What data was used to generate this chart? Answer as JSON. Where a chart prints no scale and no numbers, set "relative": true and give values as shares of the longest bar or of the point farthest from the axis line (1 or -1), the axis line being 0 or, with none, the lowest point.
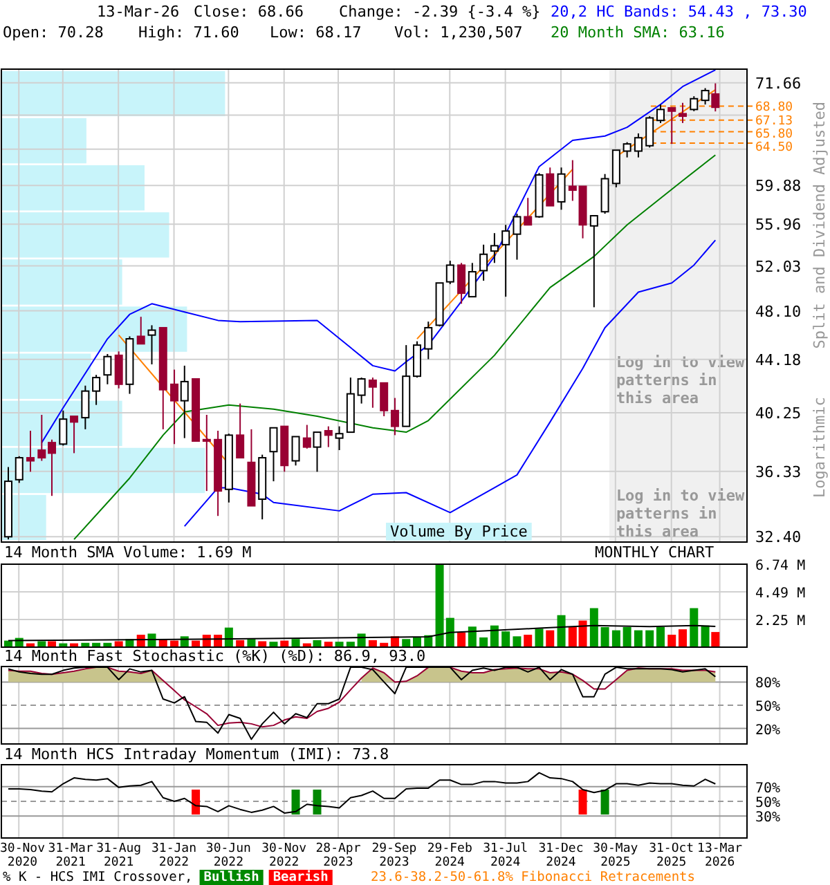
{
  "chart_data": [
    {
      "type": "candlestick",
      "title": "13-Mar-26",
      "ylabel": "Split and Dividend Adjusted",
      "log": true,
      "grid": true,
      "legend": "top right",
      "tick_labels": "y",
      "annotations": [
        "Close: 68.66",
        "Change: -2.39 {-3.4 %}",
        "Open: 70.28",
        "High: 71.60",
        "Low: 68.17",
        "Vol: 1,230,507",
        "Log in to view patterns in this area",
        "Logarithmic",
        "23.6-38.2-50-61.8% Fibonacci Retracements",
        "Volume By Price"
      ],
      "xlim": [
        "2020-10-13",
        "2026-05-27"
      ],
      "ylim": [
        32.1,
        73.4
      ],
      "xticks": [
        {
          "value": "2020-11-30",
          "label": null
        },
        {
          "value": "2021-03-31",
          "label": null
        },
        {
          "value": "2021-08-31",
          "label": null
        },
        {
          "value": "2022-01-31",
          "label": null
        },
        {
          "value": "2022-06-30",
          "label": null
        },
        {
          "value": "2022-11-30",
          "label": null
        },
        {
          "value": "2023-04-28",
          "label": null
        },
        {
          "value": "2023-09-29",
          "label": null
        },
        {
          "value": "2024-02-29",
          "label": null
        },
        {
          "value": "2024-07-31",
          "label": null
        },
        {
          "value": "2024-12-31",
          "label": null
        },
        {
          "value": "2025-05-30",
          "label": null
        },
        {
          "value": "2025-10-31",
          "label": null
        },
        {
          "value": "2026-03-13",
          "label": null
        }
      ],
      "yticks": [
        {
          "value": 32.4,
          "label": "32.40"
        },
        {
          "value": 36.33,
          "label": "36.33"
        },
        {
          "value": 40.25,
          "label": "40.25"
        },
        {
          "value": 44.18,
          "label": "44.18"
        },
        {
          "value": 48.1,
          "label": "48.10"
        },
        {
          "value": 52.03,
          "label": "52.03"
        },
        {
          "value": 55.96,
          "label": "55.96"
        },
        {
          "value": 59.88,
          "label": "59.88"
        },
        {
          "value": 63.81,
          "label": null
        },
        {
          "value": 67.73,
          "label": null
        },
        {
          "value": 71.66,
          "label": "71.66"
        }
      ],
      "x": [
        "2020-11",
        "2020-12",
        "2021-01",
        "2021-02",
        "2021-03",
        "2021-04",
        "2021-05",
        "2021-06",
        "2021-07",
        "2021-08",
        "2021-09",
        "2021-10",
        "2021-11",
        "2021-12",
        "2022-01",
        "2022-02",
        "2022-03",
        "2022-04",
        "2022-05",
        "2022-06",
        "2022-07",
        "2022-08",
        "2022-09",
        "2022-10",
        "2022-11",
        "2022-12",
        "2023-01",
        "2023-02",
        "2023-03",
        "2023-04",
        "2023-05",
        "2023-06",
        "2023-07",
        "2023-08",
        "2023-09",
        "2023-10",
        "2023-11",
        "2023-12",
        "2024-01",
        "2024-02",
        "2024-03",
        "2024-04",
        "2024-05",
        "2024-06",
        "2024-07",
        "2024-08",
        "2024-09",
        "2024-10",
        "2024-11",
        "2024-12",
        "2025-01",
        "2025-02",
        "2025-03",
        "2025-04",
        "2025-05",
        "2025-06",
        "2025-07",
        "2025-08",
        "2025-09",
        "2025-10",
        "2025-11",
        "2025-12",
        "2026-01",
        "2026-02",
        "2026-03"
      ],
      "ohlc": [
        [
          32.4,
          36.6,
          32.25,
          35.7
        ],
        [
          35.8,
          37.3,
          35.6,
          37.2
        ],
        [
          37.2,
          39.0,
          36.3,
          37.0
        ],
        [
          37.7,
          40.1,
          37.0,
          37.2
        ],
        [
          38.2,
          38.4,
          34.8,
          37.5
        ],
        [
          38.1,
          40.4,
          38.0,
          39.8
        ],
        [
          40.0,
          40.0,
          37.5,
          39.6
        ],
        [
          39.9,
          42.2,
          39.1,
          41.8
        ],
        [
          41.8,
          43.0,
          40.8,
          42.8
        ],
        [
          43.0,
          44.6,
          42.3,
          44.4
        ],
        [
          44.5,
          44.8,
          42.0,
          42.3
        ],
        [
          42.3,
          46.0,
          41.6,
          45.8
        ],
        [
          46.0,
          47.6,
          45.4,
          45.4
        ],
        [
          46.1,
          46.9,
          43.8,
          46.5
        ],
        [
          46.7,
          46.7,
          39.1,
          41.9
        ],
        [
          42.3,
          43.4,
          38.1,
          41.1
        ],
        [
          41.1,
          43.7,
          38.5,
          42.5
        ],
        [
          42.7,
          42.7,
          38.3,
          38.3
        ],
        [
          38.4,
          40.1,
          35.1,
          38.3
        ],
        [
          38.4,
          39.0,
          33.6,
          35.1
        ],
        [
          35.2,
          38.8,
          34.4,
          38.7
        ],
        [
          38.7,
          40.9,
          37.2,
          37.2
        ],
        [
          36.9,
          39.1,
          34.2,
          34.2
        ],
        [
          34.6,
          37.4,
          33.4,
          37.2
        ],
        [
          37.6,
          39.2,
          35.7,
          39.2
        ],
        [
          39.3,
          39.3,
          36.3,
          36.7
        ],
        [
          37.0,
          38.6,
          36.7,
          38.6
        ],
        [
          38.5,
          39.4,
          37.8,
          37.9
        ],
        [
          37.9,
          38.9,
          36.3,
          38.9
        ],
        [
          39.0,
          39.3,
          37.9,
          38.7
        ],
        [
          38.5,
          39.3,
          37.7,
          38.8
        ],
        [
          38.9,
          42.8,
          38.9,
          41.6
        ],
        [
          41.5,
          42.8,
          40.9,
          42.7
        ],
        [
          42.6,
          42.8,
          40.6,
          42.1
        ],
        [
          42.4,
          42.4,
          40.0,
          40.4
        ],
        [
          40.4,
          41.3,
          38.7,
          39.3
        ],
        [
          39.3,
          45.3,
          39.3,
          42.9
        ],
        [
          42.9,
          45.6,
          42.8,
          45.3
        ],
        [
          45.0,
          47.2,
          44.2,
          46.7
        ],
        [
          46.9,
          50.5,
          46.8,
          50.5
        ],
        [
          50.6,
          52.5,
          50.4,
          52.1
        ],
        [
          52.1,
          52.3,
          48.7,
          49.6
        ],
        [
          49.3,
          52.3,
          49.3,
          51.5
        ],
        [
          51.6,
          54.0,
          50.7,
          53.1
        ],
        [
          53.4,
          55.1,
          52.3,
          53.9
        ],
        [
          54.0,
          55.9,
          49.3,
          55.3
        ],
        [
          55.0,
          57.0,
          52.6,
          56.7
        ],
        [
          56.7,
          58.6,
          55.9,
          55.9
        ],
        [
          56.7,
          61.2,
          56.6,
          61.0
        ],
        [
          61.1,
          61.8,
          57.8,
          57.8
        ],
        [
          58.2,
          61.8,
          57.4,
          61.1
        ],
        [
          59.8,
          62.6,
          58.3,
          59.4
        ],
        [
          59.8,
          59.8,
          54.6,
          55.9
        ],
        [
          55.8,
          56.8,
          48.4,
          56.8
        ],
        [
          57.2,
          61.1,
          57.0,
          60.6
        ],
        [
          60.1,
          63.7,
          59.7,
          63.7
        ],
        [
          63.6,
          64.6,
          62.9,
          64.4
        ],
        [
          63.6,
          65.6,
          62.9,
          65.1
        ],
        [
          64.2,
          67.6,
          64.0,
          67.4
        ],
        [
          67.1,
          69.0,
          66.8,
          68.4
        ],
        [
          68.6,
          68.7,
          64.4,
          68.2
        ],
        [
          67.9,
          69.2,
          66.8,
          67.6
        ],
        [
          68.4,
          70.0,
          68.2,
          69.7
        ],
        [
          69.5,
          71.0,
          69.0,
          70.7
        ],
        [
          70.28,
          71.6,
          68.17,
          68.66
        ]
      ],
      "series": [
        {
          "type": "line",
          "name": "20,2 HC Bands: 54.43 , 73.30",
          "color": "#0000ff",
          "x": [
            "2021-02",
            "2021-04",
            "2021-08",
            "2021-10",
            "2021-12",
            "2022-03",
            "2022-06",
            "2022-08",
            "2023-03",
            "2023-08",
            "2023-10",
            "2023-11",
            "2024-01",
            "2024-04",
            "2024-07",
            "2024-11",
            "2025-02",
            "2025-05",
            "2025-07",
            "2025-10",
            "2025-12",
            "2026-03"
          ],
          "values": [
            38.2,
            40.6,
            45.8,
            47.8,
            48.7,
            48.0,
            47.3,
            47.2,
            47.3,
            43.7,
            43.3,
            44.0,
            45.3,
            48.9,
            52.9,
            61.9,
            64.8,
            65.3,
            66.3,
            69.0,
            71.2,
            73.3
          ]
        },
        {
          "type": "line",
          "color": "#0000ff",
          "x": [
            "2022-03",
            "2022-06",
            "2022-07",
            "2022-10",
            "2022-11",
            "2023-05",
            "2023-08",
            "2023-11",
            "2024-03",
            "2024-07",
            "2024-09",
            "2024-12",
            "2025-03",
            "2025-05",
            "2025-08",
            "2025-11",
            "2026-01",
            "2026-03"
          ],
          "values": [
            33.0,
            35.3,
            35.3,
            34.9,
            34.4,
            33.9,
            34.9,
            35.0,
            33.8,
            35.3,
            36.1,
            39.6,
            43.5,
            46.7,
            49.7,
            50.5,
            52.1,
            54.43
          ]
        },
        {
          "type": "line",
          "name": "20 Month SMA: 63.16",
          "color": "#008000",
          "x": [
            "2021-05",
            "2021-10",
            "2022-01",
            "2022-03",
            "2022-07",
            "2022-11",
            "2023-03",
            "2023-08",
            "2023-11",
            "2024-01",
            "2024-07",
            "2024-12",
            "2025-04",
            "2025-07",
            "2025-12",
            "2026-03"
          ],
          "values": [
            32.25,
            35.9,
            38.7,
            40.3,
            40.8,
            40.5,
            40.0,
            39.2,
            38.9,
            39.7,
            44.5,
            50.1,
            52.9,
            55.9,
            60.4,
            63.16
          ]
        },
        {
          "type": "line",
          "color": "#ff8000",
          "x": [
            "2021-09",
            "2022-07"
          ],
          "values": [
            46.1,
            36.8
          ]
        },
        {
          "type": "line",
          "color": "#ff8000",
          "x": [
            "2023-12",
            "2025-02"
          ],
          "values": [
            45.8,
            61.6
          ]
        },
        {
          "type": "line",
          "color": "#ff8000",
          "x": [
            "2025-06",
            "2026-03"
          ],
          "values": [
            63.0,
            70.8
          ]
        }
      ],
      "bands": [
        {
          "axis": "x",
          "from": "2025-05-13",
          "to": "2026-05-27",
          "label": "Log in to view patterns in this area",
          "color": "#f0f0f0"
        }
      ],
      "ref_lines": [
        {
          "axis": "y",
          "value": 68.8,
          "label": "68.80",
          "color": "#ff8000",
          "line_style": "dashed"
        },
        {
          "axis": "y",
          "value": 67.13,
          "label": "67.13",
          "color": "#ff8000",
          "line_style": "dashed"
        },
        {
          "axis": "y",
          "value": 65.8,
          "label": "65.80",
          "color": "#ff8000",
          "line_style": "dashed"
        },
        {
          "axis": "y",
          "value": 64.5,
          "label": "64.50",
          "color": "#ff8000",
          "line_style": "dashed"
        }
      ]
    },
    {
      "type": "bar",
      "orientation": "horizontal",
      "relative": true,
      "color": "#c8f4fa",
      "categories": [
        null,
        null,
        null,
        null,
        null,
        null,
        null,
        null,
        null,
        null
      ],
      "values": [
        1,
        0.38,
        0.64,
        0.75,
        0.54,
        0.83,
        0.4,
        0.54,
        0.91,
        0.2
      ]
    },
    {
      "type": "bar",
      "title": "14 Month SMA Volume: 1.69 M",
      "annotations": [
        "MONTHLY CHART"
      ],
      "grid": true,
      "tick_labels": "y",
      "xlim": [
        "2020-10-13",
        "2026-05-27"
      ],
      "ylim": [
        0,
        6.74
      ],
      "xticks": [
        {
          "value": "2020-11-30",
          "label": null
        },
        {
          "value": "2021-03-31",
          "label": null
        },
        {
          "value": "2021-08-31",
          "label": null
        },
        {
          "value": "2022-01-31",
          "label": null
        },
        {
          "value": "2022-06-30",
          "label": null
        },
        {
          "value": "2022-11-30",
          "label": null
        },
        {
          "value": "2023-04-28",
          "label": null
        },
        {
          "value": "2023-09-29",
          "label": null
        },
        {
          "value": "2024-02-29",
          "label": null
        },
        {
          "value": "2024-07-31",
          "label": null
        },
        {
          "value": "2024-12-31",
          "label": null
        },
        {
          "value": "2025-05-30",
          "label": null
        },
        {
          "value": "2025-10-31",
          "label": null
        },
        {
          "value": "2026-03-13",
          "label": null
        }
      ],
      "yticks": [
        {
          "value": 2.25,
          "label": "2.25 M"
        },
        {
          "value": 4.49,
          "label": "4.49 M"
        },
        {
          "value": 6.74,
          "label": "6.74 M"
        }
      ],
      "x": [
        "2020-11",
        "2020-12",
        "2021-01",
        "2021-02",
        "2021-03",
        "2021-04",
        "2021-05",
        "2021-06",
        "2021-07",
        "2021-08",
        "2021-09",
        "2021-10",
        "2021-11",
        "2021-12",
        "2022-01",
        "2022-02",
        "2022-03",
        "2022-04",
        "2022-05",
        "2022-06",
        "2022-07",
        "2022-08",
        "2022-09",
        "2022-10",
        "2022-11",
        "2022-12",
        "2023-01",
        "2023-02",
        "2023-03",
        "2023-04",
        "2023-05",
        "2023-06",
        "2023-07",
        "2023-08",
        "2023-09",
        "2023-10",
        "2023-11",
        "2023-12",
        "2024-01",
        "2024-02",
        "2024-03",
        "2024-04",
        "2024-05",
        "2024-06",
        "2024-07",
        "2024-08",
        "2024-09",
        "2024-10",
        "2024-11",
        "2024-12",
        "2025-01",
        "2025-02",
        "2025-03",
        "2025-04",
        "2025-05",
        "2025-06",
        "2025-07",
        "2025-08",
        "2025-09",
        "2025-10",
        "2025-11",
        "2025-12",
        "2026-01",
        "2026-02",
        "2026-03"
      ],
      "series": [
        {
          "type": "bar",
          "values": [
            0.53,
            0.75,
            0.31,
            0.48,
            0.48,
            0.31,
            0.31,
            0.35,
            0.35,
            0.35,
            0.48,
            0.66,
            1.01,
            1.1,
            0.62,
            0.53,
            0.88,
            0.53,
            1.01,
            1.01,
            1.59,
            0.57,
            0.66,
            0.48,
            0.44,
            0.53,
            0.66,
            0.31,
            0.57,
            0.44,
            0.44,
            0.44,
            1.1,
            0.57,
            0.35,
            0.88,
            0.66,
            0.79,
            0.97,
            6.74,
            2.38,
            1.19,
            1.67,
            0.79,
            1.76,
            1.28,
            0.88,
            1.01,
            1.5,
            1.37,
            2.6,
            1.63,
            2.16,
            3.17,
            1.63,
            1.37,
            1.63,
            1.37,
            1.37,
            1.63,
            1.01,
            1.45,
            3.17,
            1.76,
            1.23
          ],
          "colors": [
            "#009900",
            "#009900",
            "#ff0000",
            "#009900",
            "#ff0000",
            "#009900",
            "#ff0000",
            "#009900",
            "#009900",
            "#009900",
            "#ff0000",
            "#009900",
            "#ff0000",
            "#009900",
            "#ff0000",
            "#ff0000",
            "#009900",
            "#ff0000",
            "#ff0000",
            "#ff0000",
            "#009900",
            "#ff0000",
            "#009900",
            "#ff0000",
            "#009900",
            "#ff0000",
            "#009900",
            "#ff0000",
            "#009900",
            "#ff0000",
            "#009900",
            "#009900",
            "#009900",
            "#ff0000",
            "#ff0000",
            "#ff0000",
            "#009900",
            "#009900",
            "#009900",
            "#009900",
            "#009900",
            "#ff0000",
            "#009900",
            "#009900",
            "#009900",
            "#009900",
            "#009900",
            "#ff0000",
            "#009900",
            "#ff0000",
            "#009900",
            "#ff0000",
            "#ff0000",
            "#009900",
            "#009900",
            "#009900",
            "#009900",
            "#009900",
            "#009900",
            "#009900",
            "#ff0000",
            "#ff0000",
            "#009900",
            "#009900",
            "#ff0000"
          ]
        },
        {
          "type": "line",
          "color": "#000000",
          "x": [
            "2020-11",
            "2022-06",
            "2024-01",
            "2024-03",
            "2024-06",
            "2024-11",
            "2025-04",
            "2025-09",
            "2026-01",
            "2026-03"
          ],
          "values": [
            0.53,
            0.66,
            0.84,
            1.19,
            1.32,
            1.54,
            1.76,
            1.67,
            1.76,
            1.69
          ]
        }
      ]
    },
    {
      "type": "line",
      "title": "14 Month Fast Stochastic (%K) (%D): 86.9, 93.0",
      "grid": "x",
      "tick_labels": "y",
      "xlim": [
        "2020-10-13",
        "2026-05-27"
      ],
      "ylim": [
        0,
        100
      ],
      "xticks": [
        {
          "value": "2020-11-30",
          "label": null
        },
        {
          "value": "2021-03-31",
          "label": null
        },
        {
          "value": "2021-08-31",
          "label": null
        },
        {
          "value": "2022-01-31",
          "label": null
        },
        {
          "value": "2022-06-30",
          "label": null
        },
        {
          "value": "2022-11-30",
          "label": null
        },
        {
          "value": "2023-04-28",
          "label": null
        },
        {
          "value": "2023-09-29",
          "label": null
        },
        {
          "value": "2024-02-29",
          "label": null
        },
        {
          "value": "2024-07-31",
          "label": null
        },
        {
          "value": "2024-12-31",
          "label": null
        },
        {
          "value": "2025-05-30",
          "label": null
        },
        {
          "value": "2025-10-31",
          "label": null
        },
        {
          "value": "2026-03-13",
          "label": null
        }
      ],
      "yticks": [
        {
          "value": 20,
          "label": "20%"
        },
        {
          "value": 50,
          "label": "50%"
        },
        {
          "value": 80,
          "label": "80%"
        }
      ],
      "ref_lines": [
        {
          "axis": "y",
          "value": 80,
          "color": "#999999",
          "line_style": "solid"
        },
        {
          "axis": "y",
          "value": 50,
          "color": "#999999",
          "line_style": "dashed"
        },
        {
          "axis": "y",
          "value": 20,
          "color": "#999999",
          "line_style": "solid"
        }
      ],
      "x": [
        "2020-11",
        "2020-12",
        "2021-01",
        "2021-02",
        "2021-03",
        "2021-04",
        "2021-05",
        "2021-06",
        "2021-07",
        "2021-08",
        "2021-09",
        "2021-10",
        "2021-11",
        "2021-12",
        "2022-01",
        "2022-02",
        "2022-03",
        "2022-04",
        "2022-05",
        "2022-06",
        "2022-07",
        "2022-08",
        "2022-09",
        "2022-10",
        "2022-11",
        "2022-12",
        "2023-01",
        "2023-02",
        "2023-03",
        "2023-04",
        "2023-05",
        "2023-06",
        "2023-07",
        "2023-08",
        "2023-09",
        "2023-10",
        "2023-11",
        "2023-12",
        "2024-01",
        "2024-02",
        "2024-03",
        "2024-04",
        "2024-05",
        "2024-06",
        "2024-07",
        "2024-08",
        "2024-09",
        "2024-10",
        "2024-11",
        "2024-12",
        "2025-01",
        "2025-02",
        "2025-03",
        "2025-04",
        "2025-05",
        "2025-06",
        "2025-07",
        "2025-08",
        "2025-09",
        "2025-10",
        "2025-11",
        "2025-12",
        "2026-01",
        "2026-02",
        "2026-03"
      ],
      "series": [
        {
          "type": "area",
          "color": "#c8c48c",
          "values": [
            95,
            94,
            94,
            91,
            90,
            92,
            94,
            97,
            99,
            99,
            94,
            93,
            91,
            95,
            82,
            null,
            null,
            null,
            null,
            null,
            null,
            null,
            null,
            null,
            null,
            null,
            null,
            null,
            null,
            null,
            null,
            null,
            85,
            98,
            92,
            80,
            81,
            88,
            99,
            99,
            99,
            94,
            92,
            92,
            96,
            97,
            98,
            97,
            97,
            92,
            93,
            90,
            82,
            null,
            null,
            83,
            95,
            98,
            97,
            97,
            97,
            95,
            95,
            95,
            93
          ]
        },
        {
          "type": "line",
          "color": "#990033",
          "values": [
            95,
            94,
            94,
            91,
            90,
            92,
            94,
            97,
            99,
            99,
            94,
            93,
            91,
            95,
            82,
            69,
            57,
            48,
            39,
            24,
            27,
            28,
            26,
            22,
            24,
            31,
            35,
            33,
            42,
            46,
            54,
            70,
            85,
            98,
            92,
            80,
            81,
            88,
            99,
            99,
            99,
            94,
            92,
            92,
            96,
            97,
            98,
            97,
            97,
            92,
            93,
            90,
            82,
            71,
            71,
            83,
            95,
            98,
            97,
            97,
            97,
            95,
            95,
            95,
            93
          ]
        },
        {
          "type": "line",
          "color": "#000000",
          "values": [
            97,
            93,
            91,
            90,
            90,
            95,
            98,
            99,
            99,
            99,
            83,
            97,
            93,
            95,
            58,
            53,
            61,
            29,
            28,
            14,
            38,
            33,
            6,
            26,
            41,
            26,
            39,
            34,
            52,
            52,
            58,
            99,
            99,
            96,
            80,
            65,
            99,
            99,
            99,
            99,
            99,
            83,
            95,
            98,
            95,
            99,
            99,
            93,
            99,
            83,
            96,
            90,
            61,
            61,
            90,
            99,
            97,
            97,
            97,
            97,
            96,
            93,
            95,
            97,
            86.9
          ]
        }
      ]
    },
    {
      "type": "line",
      "title": "14 Month HCS Intraday Momentum (IMI): 73.8",
      "grid": "x",
      "legend": "bottom",
      "legend_title": "% K - HCS IMI Crossover,",
      "xlim": [
        "2020-10-13",
        "2026-05-27"
      ],
      "ylim": [
        0,
        100
      ],
      "xticks": [
        {
          "value": "2020-11-30",
          "label": "30-Nov 2020"
        },
        {
          "value": "2021-03-31",
          "label": "31-Mar 2021"
        },
        {
          "value": "2021-08-31",
          "label": "31-Aug 2021"
        },
        {
          "value": "2022-01-31",
          "label": "31-Jan 2022"
        },
        {
          "value": "2022-06-30",
          "label": "30-Jun 2022"
        },
        {
          "value": "2022-11-30",
          "label": "30-Nov 2022"
        },
        {
          "value": "2023-04-28",
          "label": "28-Apr 2023"
        },
        {
          "value": "2023-09-29",
          "label": "29-Sep 2023"
        },
        {
          "value": "2024-02-29",
          "label": "29-Feb 2024"
        },
        {
          "value": "2024-07-31",
          "label": "31-Jul 2024"
        },
        {
          "value": "2024-12-31",
          "label": "31-Dec 2024"
        },
        {
          "value": "2025-05-30",
          "label": "30-May 2025"
        },
        {
          "value": "2025-10-31",
          "label": "31-Oct 2025"
        },
        {
          "value": "2026-03-13",
          "label": "13-Mar 2026"
        }
      ],
      "yticks": [
        {
          "value": 30,
          "label": "30%"
        },
        {
          "value": 50,
          "label": "50%"
        },
        {
          "value": 70,
          "label": "70%"
        }
      ],
      "ref_lines": [
        {
          "axis": "y",
          "value": 70,
          "color": "#999999",
          "line_style": "solid"
        },
        {
          "axis": "y",
          "value": 50,
          "color": "#999999",
          "line_style": "dashed"
        },
        {
          "axis": "y",
          "value": 30,
          "color": "#999999",
          "line_style": "solid"
        }
      ],
      "x": [
        "2020-11",
        "2020-12",
        "2021-01",
        "2021-02",
        "2021-03",
        "2021-04",
        "2021-05",
        "2021-06",
        "2021-07",
        "2021-08",
        "2021-09",
        "2021-10",
        "2021-11",
        "2021-12",
        "2022-01",
        "2022-02",
        "2022-03",
        "2022-04",
        "2022-05",
        "2022-06",
        "2022-07",
        "2022-08",
        "2022-09",
        "2022-10",
        "2022-11",
        "2022-12",
        "2023-01",
        "2023-02",
        "2023-03",
        "2023-04",
        "2023-05",
        "2023-06",
        "2023-07",
        "2023-08",
        "2023-09",
        "2023-10",
        "2023-11",
        "2023-12",
        "2024-01",
        "2024-02",
        "2024-03",
        "2024-04",
        "2024-05",
        "2024-06",
        "2024-07",
        "2024-08",
        "2024-09",
        "2024-10",
        "2024-11",
        "2024-12",
        "2025-01",
        "2025-02",
        "2025-03",
        "2025-04",
        "2025-05",
        "2025-06",
        "2025-07",
        "2025-08",
        "2025-09",
        "2025-10",
        "2025-11",
        "2025-12",
        "2026-01",
        "2026-02",
        "2026-03"
      ],
      "series": [
        {
          "type": "bar",
          "name": "Bullish",
          "color": "#008800",
          "x": [
            "2023-01",
            "2023-03",
            "2025-05"
          ],
          "base": [
            32,
            32,
            32
          ],
          "values": [
            34,
            34,
            34
          ]
        },
        {
          "type": "bar",
          "name": "Bearish",
          "color": "#ff0000",
          "x": [
            "2022-04",
            "2025-03"
          ],
          "base": [
            32,
            32
          ],
          "values": [
            34,
            34
          ]
        },
        {
          "type": "line",
          "color": "#000000",
          "values": [
            67,
            67,
            66,
            64,
            63,
            74,
            82,
            80,
            79,
            81,
            69,
            71,
            72,
            77,
            55,
            50,
            54,
            44,
            43,
            36,
            44,
            39,
            35,
            38,
            43,
            34,
            36,
            46,
            44,
            43,
            41,
            55,
            58,
            64,
            54,
            54,
            67,
            68,
            68,
            79,
            79,
            73,
            73,
            77,
            77,
            75,
            75,
            77,
            89,
            82,
            81,
            77,
            66,
            62,
            65,
            74,
            74,
            72,
            75,
            74,
            74,
            72,
            71,
            80,
            73.8
          ]
        }
      ]
    }
  ]
}
